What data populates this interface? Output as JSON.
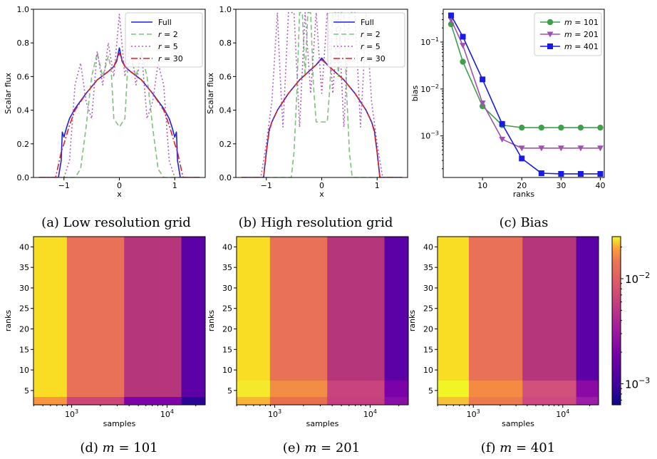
{
  "chart_data": [
    {
      "type": "line",
      "caption": "(a) Low resolution grid",
      "xlabel": "x",
      "ylabel": "Scalar flux",
      "xlim": [
        -1.55,
        1.55
      ],
      "ylim": [
        0,
        1.0
      ],
      "xticks": [
        -1,
        0,
        1
      ],
      "xtick_labels": [
        "−1",
        "0",
        "1"
      ],
      "yticks": [
        0.0,
        0.2,
        0.4,
        0.6,
        0.8,
        1.0
      ],
      "ytick_labels": [
        "0.0",
        "0.2",
        "0.4",
        "0.6",
        "0.8",
        "1.0"
      ],
      "legend_position": "top-right",
      "series": [
        {
          "name": "Full",
          "color": "#1f1fe0",
          "style": "solid",
          "x": [
            -1.45,
            -1.1,
            -1.05,
            -1.03,
            -1.0,
            -0.95,
            -0.9,
            -0.8,
            -0.6,
            -0.4,
            -0.2,
            -0.1,
            -0.05,
            0,
            0.05,
            0.1,
            0.2,
            0.4,
            0.6,
            0.8,
            0.9,
            0.95,
            1.0,
            1.03,
            1.05,
            1.1,
            1.45
          ],
          "y": [
            0,
            0,
            0.1,
            0.27,
            0.24,
            0.3,
            0.35,
            0.41,
            0.5,
            0.58,
            0.63,
            0.66,
            0.69,
            0.77,
            0.69,
            0.66,
            0.63,
            0.58,
            0.5,
            0.41,
            0.35,
            0.3,
            0.24,
            0.27,
            0.1,
            0,
            0
          ]
        },
        {
          "name": "r = 2",
          "color": "#7fbf7f",
          "style": "dashed",
          "x": [
            -1.45,
            -0.8,
            -0.7,
            -0.6,
            -0.5,
            -0.4,
            -0.3,
            -0.2,
            -0.15,
            -0.1,
            0,
            0.1,
            0.15,
            0.2,
            0.3,
            0.4,
            0.5,
            0.6,
            0.7,
            0.8,
            1.45
          ],
          "y": [
            0,
            0,
            0.05,
            0.3,
            0.6,
            0.74,
            0.6,
            0.72,
            0.65,
            0.35,
            0.3,
            0.35,
            0.65,
            0.72,
            0.6,
            0.74,
            0.6,
            0.3,
            0.05,
            0,
            0
          ]
        },
        {
          "name": "r = 5",
          "color": "#b060c0",
          "style": "dotted",
          "x": [
            -1.45,
            -1.0,
            -0.9,
            -0.8,
            -0.7,
            -0.6,
            -0.5,
            -0.4,
            -0.3,
            -0.2,
            -0.1,
            0,
            0.1,
            0.2,
            0.3,
            0.4,
            0.5,
            0.6,
            0.7,
            0.8,
            0.9,
            1.0,
            1.45
          ],
          "y": [
            0,
            0,
            0.1,
            0.55,
            0.68,
            0.45,
            0.35,
            0.75,
            0.55,
            0.8,
            0.6,
            0.97,
            0.6,
            0.8,
            0.55,
            0.75,
            0.35,
            0.45,
            0.68,
            0.55,
            0.1,
            0,
            0
          ]
        },
        {
          "name": "r = 30",
          "color": "#e02020",
          "style": "dashdot",
          "x": [
            -1.45,
            -1.15,
            -1.05,
            -1.0,
            -0.9,
            -0.8,
            -0.6,
            -0.4,
            -0.2,
            -0.1,
            0,
            0.1,
            0.2,
            0.4,
            0.6,
            0.8,
            0.9,
            1.0,
            1.05,
            1.15,
            1.45
          ],
          "y": [
            0,
            0,
            0.15,
            0.2,
            0.31,
            0.4,
            0.5,
            0.58,
            0.63,
            0.66,
            0.74,
            0.66,
            0.63,
            0.58,
            0.5,
            0.4,
            0.31,
            0.2,
            0.15,
            0,
            0
          ]
        }
      ]
    },
    {
      "type": "line",
      "caption": "(b) High resolution grid",
      "xlabel": "x",
      "ylabel": "Scalar flux",
      "xlim": [
        -1.55,
        1.55
      ],
      "ylim": [
        0,
        1.0
      ],
      "xticks": [
        -1,
        0,
        1
      ],
      "xtick_labels": [
        "−1",
        "0",
        "1"
      ],
      "yticks": [
        0.0,
        0.2,
        0.4,
        0.6,
        0.8,
        1.0
      ],
      "ytick_labels": [
        "0.0",
        "0.2",
        "0.4",
        "0.6",
        "0.8",
        "1.0"
      ],
      "legend_position": "top-right",
      "series": [
        {
          "name": "Full",
          "color": "#1f1fe0",
          "style": "solid",
          "x": [
            -1.45,
            -1.05,
            -1.0,
            -0.95,
            -0.9,
            -0.8,
            -0.6,
            -0.4,
            -0.2,
            -0.1,
            0,
            0.1,
            0.2,
            0.4,
            0.6,
            0.8,
            0.9,
            0.95,
            1.0,
            1.05,
            1.45
          ],
          "y": [
            0,
            0,
            0.15,
            0.28,
            0.33,
            0.4,
            0.5,
            0.58,
            0.64,
            0.67,
            0.71,
            0.67,
            0.64,
            0.58,
            0.5,
            0.4,
            0.33,
            0.28,
            0.15,
            0,
            0
          ]
        },
        {
          "name": "r = 2",
          "color": "#7fbf7f",
          "style": "dashed",
          "x": [
            -1.45,
            -0.55,
            -0.5,
            -0.45,
            -0.4,
            -0.35,
            -0.3,
            -0.25,
            -0.2,
            -0.15,
            -0.1,
            0,
            0.1,
            0.15,
            0.2,
            0.25,
            0.3,
            0.35,
            0.4,
            0.45,
            0.5,
            0.55,
            1.45
          ],
          "y": [
            0,
            0,
            0.15,
            0.5,
            0.98,
            0.98,
            0.6,
            0.98,
            0.98,
            0.55,
            0.33,
            0.33,
            0.33,
            0.55,
            0.98,
            0.98,
            0.6,
            0.98,
            0.98,
            0.5,
            0.15,
            0,
            0
          ]
        },
        {
          "name": "r = 5",
          "color": "#b060c0",
          "style": "dotted",
          "x": [
            -1.45,
            -1.1,
            -1.0,
            -0.9,
            -0.8,
            -0.75,
            -0.7,
            -0.6,
            -0.5,
            -0.4,
            -0.3,
            -0.2,
            -0.1,
            0,
            0.1,
            0.2,
            0.3,
            0.4,
            0.5,
            0.6,
            0.7,
            0.75,
            0.8,
            0.9,
            1.0,
            1.1,
            1.45
          ],
          "y": [
            0,
            0,
            0.2,
            0.45,
            0.98,
            0.6,
            0.3,
            0.98,
            0.98,
            0.3,
            0.98,
            0.5,
            0.98,
            0.5,
            0.98,
            0.5,
            0.98,
            0.3,
            0.98,
            0.98,
            0.3,
            0.6,
            0.98,
            0.45,
            0.2,
            0,
            0
          ]
        },
        {
          "name": "r = 30",
          "color": "#e02020",
          "style": "dashdot",
          "x": [
            -1.45,
            -1.05,
            -1.0,
            -0.95,
            -0.9,
            -0.8,
            -0.6,
            -0.4,
            -0.2,
            -0.1,
            0,
            0.1,
            0.2,
            0.4,
            0.6,
            0.8,
            0.9,
            0.95,
            1.0,
            1.05,
            1.45
          ],
          "y": [
            0,
            0,
            0.15,
            0.27,
            0.33,
            0.4,
            0.5,
            0.58,
            0.64,
            0.67,
            0.7,
            0.67,
            0.64,
            0.58,
            0.5,
            0.4,
            0.33,
            0.27,
            0.15,
            0,
            0
          ]
        }
      ]
    },
    {
      "type": "line",
      "caption": "(c) Bias",
      "xlabel": "ranks",
      "ylabel": "bias",
      "xlim": [
        0,
        41
      ],
      "ylim": [
        0.00013,
        0.5
      ],
      "yscale": "log",
      "xticks": [
        10,
        20,
        30,
        40
      ],
      "xtick_labels": [
        "10",
        "20",
        "30",
        "40"
      ],
      "ytick_values": [
        0.001,
        0.01,
        0.1
      ],
      "ytick_base": "10",
      "ytick_exponents": [
        "−3",
        "−2",
        "−1"
      ],
      "legend_position": "top-right",
      "legend_prefix": "m = ",
      "series": [
        {
          "name": "101",
          "color": "#3fa04a",
          "marker": "circle",
          "x": [
            2,
            5,
            10,
            15,
            20,
            25,
            30,
            35,
            40
          ],
          "y": [
            0.24,
            0.038,
            0.0043,
            0.0017,
            0.0015,
            0.0015,
            0.0015,
            0.0015,
            0.0015
          ]
        },
        {
          "name": "201",
          "color": "#a050b0",
          "marker": "triangle-down",
          "x": [
            2,
            5,
            10,
            15,
            20,
            25,
            30,
            35,
            40
          ],
          "y": [
            0.3,
            0.085,
            0.005,
            0.00085,
            0.00055,
            0.00055,
            0.00055,
            0.00055,
            0.00055
          ]
        },
        {
          "name": "401",
          "color": "#1a1ae6",
          "marker": "square",
          "x": [
            2,
            5,
            10,
            15,
            20,
            25,
            30,
            35,
            40
          ],
          "y": [
            0.37,
            0.13,
            0.016,
            0.0018,
            0.00033,
            0.00016,
            0.000155,
            0.000155,
            0.000155
          ]
        }
      ]
    },
    {
      "type": "heatmap",
      "caption_prefix": "(d) ",
      "m_value": "101",
      "xlabel": "samples",
      "ylabel": "ranks",
      "yticks": [
        5,
        10,
        15,
        20,
        25,
        30,
        35,
        40
      ],
      "y_cell_edges": [
        1.5,
        3.5,
        42.5
      ],
      "sample_edges_log10": [
        2.6,
        2.95,
        3.55,
        4.15,
        4.4
      ],
      "xtick_values": [
        1000,
        10000
      ],
      "xtick_base": "10",
      "xtick_exponents": [
        "3",
        "4"
      ],
      "rows": [
        [
          "#f89540",
          "#cc4778",
          "#7e03a8",
          "#2a0593"
        ],
        [
          "#f9dc24",
          "#e97158",
          "#b5367a",
          "#5c01a6"
        ]
      ]
    },
    {
      "type": "heatmap",
      "caption_prefix": "(e) ",
      "m_value": "201",
      "xlabel": "samples",
      "ylabel": "ranks",
      "yticks": [
        5,
        10,
        15,
        20,
        25,
        30,
        35,
        40
      ],
      "y_cell_edges": [
        1.5,
        3.5,
        7.5,
        42.5
      ],
      "sample_edges_log10": [
        2.6,
        2.95,
        3.55,
        4.15,
        4.4
      ],
      "xtick_values": [
        1000,
        10000
      ],
      "xtick_base": "10",
      "xtick_exponents": [
        "3",
        "4"
      ],
      "rows": [
        [
          "#f7b437",
          "#e8704f",
          "#c5407e",
          "#8a0ea5"
        ],
        [
          "#f5e92c",
          "#f28d45",
          "#c9437f",
          "#7a02a8"
        ],
        [
          "#f9dc24",
          "#e97158",
          "#b5367a",
          "#5c01a6"
        ]
      ]
    },
    {
      "type": "heatmap",
      "caption_prefix": "(f) ",
      "m_value": "401",
      "xlabel": "samples",
      "ylabel": "ranks",
      "yticks": [
        5,
        10,
        15,
        20,
        25,
        30,
        35,
        40
      ],
      "y_cell_edges": [
        1.5,
        3.5,
        7.5,
        42.5
      ],
      "sample_edges_log10": [
        2.6,
        2.95,
        3.55,
        4.15,
        4.4
      ],
      "xtick_values": [
        1000,
        10000
      ],
      "xtick_base": "10",
      "xtick_exponents": [
        "3",
        "4"
      ],
      "rows": [
        [
          "#f7c13b",
          "#ec7a4f",
          "#cc4a80",
          "#9a1ea6"
        ],
        [
          "#f1f526",
          "#f58a43",
          "#d1507c",
          "#8b0aa5"
        ],
        [
          "#f9dc24",
          "#e97158",
          "#b5367a",
          "#5c01a6"
        ]
      ]
    }
  ],
  "colorbar": {
    "type": "log",
    "tick_base": "10",
    "ticks": [
      {
        "value": 0.01,
        "exponent": "−2"
      },
      {
        "value": 0.001,
        "exponent": "−3"
      }
    ]
  }
}
